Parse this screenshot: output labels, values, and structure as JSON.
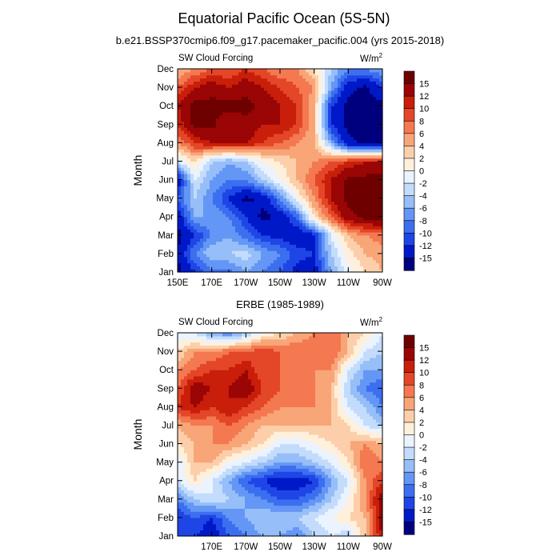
{
  "figure": {
    "title": "Equatorial Pacific Ocean (5S-5N)"
  },
  "colors": {
    "palette": [
      "#00007f",
      "#0019c8",
      "#1e46e6",
      "#3c6ef0",
      "#6496f5",
      "#96bef8",
      "#c3dcfc",
      "#eaf3ff",
      "#fff0dc",
      "#fccfaa",
      "#f8a578",
      "#f47850",
      "#e44628",
      "#c81e0a",
      "#9a0505",
      "#6e0000"
    ]
  },
  "chart_data": [
    {
      "type": "heatmap",
      "name": "model",
      "title": "b.e21.BSSP370cmip6.f09_g17.pacemaker_pacific.004 (yrs 2015-2018)",
      "left_label": "SW Cloud Forcing",
      "units_label": "W/m",
      "units_sup": "2",
      "ylabel": "Month",
      "x_ticks": [
        "150E",
        "170E",
        "170W",
        "150W",
        "130W",
        "110W",
        "90W"
      ],
      "x_tick_values": [
        150,
        170,
        190,
        210,
        230,
        250,
        270
      ],
      "xlim": [
        150,
        270
      ],
      "y_ticks": [
        "Jan",
        "Feb",
        "Mar",
        "Apr",
        "May",
        "Jun",
        "Jul",
        "Aug",
        "Sep",
        "Oct",
        "Nov",
        "Dec"
      ],
      "ylim": [
        1,
        12
      ],
      "colorbar_labels": [
        "15",
        "12",
        "10",
        "8",
        "6",
        "4",
        "2",
        "0",
        "-2",
        "-4",
        "-6",
        "-8",
        "-10",
        "-12",
        "-15"
      ],
      "contour_levels": [
        -15,
        -12,
        -10,
        -8,
        -6,
        -4,
        -2,
        0,
        2,
        4,
        6,
        8,
        10,
        12,
        15
      ],
      "longitudes": [
        150,
        160,
        170,
        180,
        190,
        200,
        210,
        220,
        230,
        240,
        250,
        260,
        270
      ],
      "months": [
        "Jan",
        "Feb",
        "Mar",
        "Apr",
        "May",
        "Jun",
        "Jul",
        "Aug",
        "Sep",
        "Oct",
        "Nov",
        "Dec"
      ],
      "values": [
        [
          -16,
          -12,
          -9,
          -9,
          -6,
          -8,
          -10,
          -13,
          -14,
          -6,
          -1,
          2,
          4
        ],
        [
          -15,
          -8,
          -4,
          -4,
          -3,
          -6,
          -8,
          -11,
          -12,
          -4,
          1,
          4,
          5
        ],
        [
          -16,
          -12,
          -8,
          -6,
          -9,
          -12,
          -13,
          -14,
          -13,
          -2,
          4,
          6,
          7
        ],
        [
          -14,
          -6,
          -6,
          -8,
          -12,
          -16,
          -14,
          -10,
          2,
          8,
          14,
          16,
          16
        ],
        [
          -10,
          -4,
          -8,
          -12,
          -16,
          -14,
          -8,
          0,
          6,
          12,
          16,
          16,
          16
        ],
        [
          -14,
          -2,
          -6,
          -8,
          -8,
          -4,
          0,
          4,
          8,
          12,
          16,
          16,
          16
        ],
        [
          -2,
          2,
          -4,
          -6,
          -4,
          0,
          2,
          4,
          6,
          8,
          10,
          12,
          12
        ],
        [
          6,
          10,
          12,
          12,
          12,
          10,
          8,
          6,
          4,
          -6,
          -14,
          -16,
          -16
        ],
        [
          10,
          16,
          16,
          12,
          14,
          12,
          12,
          10,
          4,
          -12,
          -16,
          -16,
          -16
        ],
        [
          12,
          16,
          16,
          16,
          16,
          14,
          12,
          10,
          4,
          -12,
          -16,
          -16,
          -16
        ],
        [
          8,
          12,
          14,
          12,
          14,
          12,
          10,
          8,
          6,
          -6,
          -14,
          -16,
          -12
        ],
        [
          4,
          6,
          8,
          8,
          10,
          8,
          6,
          6,
          2,
          -4,
          -8,
          -8,
          -6
        ]
      ]
    },
    {
      "type": "heatmap",
      "name": "observed",
      "title": "ERBE (1985-1989)",
      "left_label": "SW Cloud Forcing",
      "units_label": "W/m",
      "units_sup": "2",
      "ylabel": "Month",
      "x_ticks": [
        "170E",
        "170W",
        "150W",
        "130W",
        "110W",
        "90W"
      ],
      "x_tick_values": [
        170,
        190,
        210,
        230,
        250,
        270
      ],
      "xlim": [
        150,
        270
      ],
      "y_ticks": [
        "Jan",
        "Feb",
        "Mar",
        "Apr",
        "May",
        "Jun",
        "Jul",
        "Aug",
        "Sep",
        "Oct",
        "Nov",
        "Dec"
      ],
      "ylim": [
        1,
        12
      ],
      "colorbar_labels": [
        "15",
        "12",
        "10",
        "8",
        "6",
        "4",
        "2",
        "0",
        "-2",
        "-4",
        "-6",
        "-8",
        "-10",
        "-12",
        "-15"
      ],
      "contour_levels": [
        -15,
        -12,
        -10,
        -8,
        -6,
        -4,
        -2,
        0,
        2,
        4,
        6,
        8,
        10,
        12,
        15
      ],
      "longitudes": [
        150,
        160,
        170,
        180,
        190,
        200,
        210,
        220,
        230,
        240,
        250,
        260,
        270
      ],
      "months": [
        "Jan",
        "Feb",
        "Mar",
        "Apr",
        "May",
        "Jun",
        "Jul",
        "Aug",
        "Sep",
        "Oct",
        "Nov",
        "Dec"
      ],
      "values": [
        [
          -10,
          -12,
          -14,
          -10,
          -8,
          -6,
          -6,
          -8,
          -4,
          -2,
          -4,
          4,
          12
        ],
        [
          -12,
          -10,
          -12,
          -8,
          -6,
          -4,
          -4,
          -4,
          -2,
          0,
          2,
          4,
          14
        ],
        [
          -8,
          -4,
          -2,
          -4,
          -6,
          -8,
          -10,
          -10,
          -8,
          -4,
          0,
          6,
          14
        ],
        [
          -2,
          2,
          -2,
          -6,
          -10,
          -12,
          -14,
          -14,
          -12,
          -6,
          -2,
          6,
          10
        ],
        [
          -2,
          4,
          4,
          0,
          -2,
          -4,
          -6,
          -6,
          -4,
          -2,
          2,
          8,
          6
        ],
        [
          2,
          4,
          6,
          6,
          4,
          2,
          -2,
          -2,
          0,
          2,
          4,
          6,
          4
        ],
        [
          4,
          6,
          6,
          8,
          6,
          4,
          4,
          4,
          4,
          4,
          2,
          -2,
          -4
        ],
        [
          10,
          12,
          10,
          12,
          10,
          8,
          6,
          6,
          6,
          4,
          -2,
          -4,
          -8
        ],
        [
          8,
          14,
          12,
          12,
          14,
          10,
          8,
          8,
          6,
          4,
          -4,
          -8,
          -10
        ],
        [
          6,
          8,
          10,
          10,
          12,
          8,
          8,
          6,
          6,
          6,
          -2,
          -6,
          -6
        ],
        [
          2,
          6,
          6,
          8,
          8,
          10,
          8,
          8,
          8,
          8,
          4,
          -2,
          -4
        ],
        [
          -2,
          -2,
          -6,
          -8,
          -4,
          0,
          2,
          4,
          6,
          8,
          4,
          2,
          -2
        ]
      ]
    }
  ]
}
